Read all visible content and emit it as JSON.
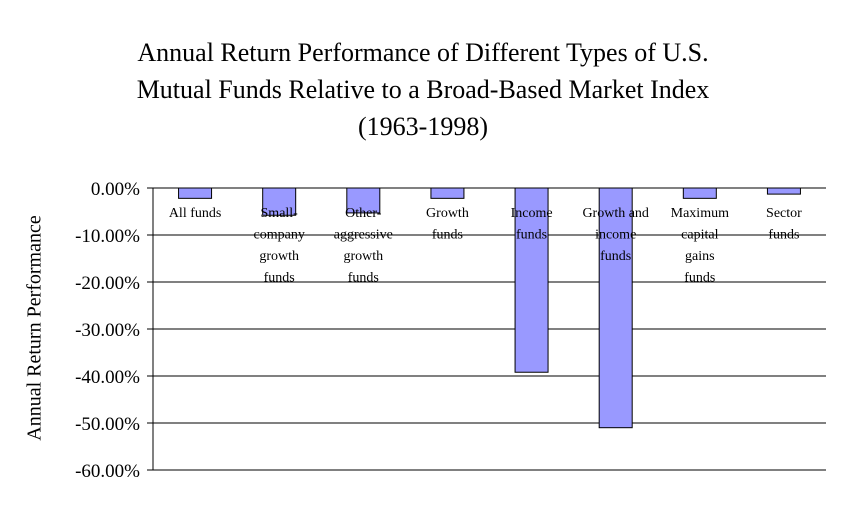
{
  "chart_data": {
    "type": "bar",
    "title_lines": [
      "Annual Return Performance of Different Types of U.S.",
      "Mutual Funds Relative to a Broad-Based Market Index",
      "(1963-1998)"
    ],
    "xlabel": "",
    "ylabel": "Annual Return Performance",
    "ylim": [
      -60,
      0
    ],
    "y_ticks": [
      0,
      -10,
      -20,
      -30,
      -40,
      -50,
      -60
    ],
    "y_tick_labels": [
      "0.00%",
      "-10.00%",
      "-20.00%",
      "-30.00%",
      "-40.00%",
      "-50.00%",
      "-60.00%"
    ],
    "grid": true,
    "bar_color": "#9999ff",
    "categories": [
      [
        "All funds"
      ],
      [
        "Small-",
        "company",
        "growth",
        "funds"
      ],
      [
        "Other-",
        "aggressive",
        "growth",
        "funds"
      ],
      [
        "Growth",
        "funds"
      ],
      [
        "Income",
        "funds"
      ],
      [
        "Growth and",
        "income",
        "funds"
      ],
      [
        "Maximum",
        "capital",
        "gains",
        "funds"
      ],
      [
        "Sector",
        "funds"
      ]
    ],
    "values": [
      -2.2,
      -5.8,
      -5.3,
      -2.2,
      -39.2,
      -51.0,
      -2.2,
      -1.3
    ]
  }
}
